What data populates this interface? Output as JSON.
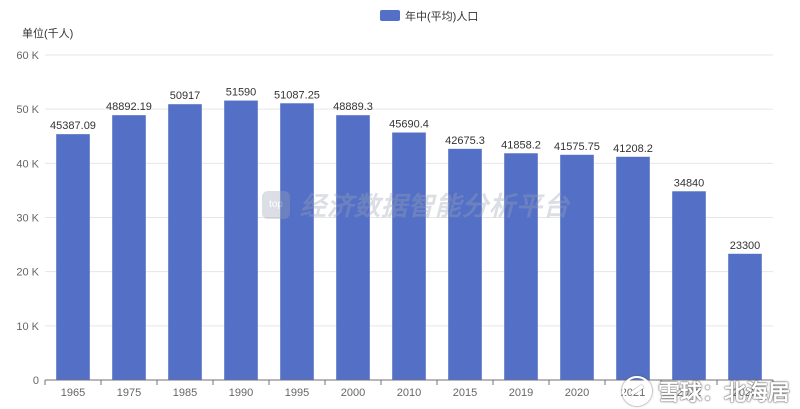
{
  "chart_data": {
    "type": "bar",
    "legend": "年中(平均)人口",
    "legend_position": "top-center",
    "unit_label": "单位(千人)",
    "categories": [
      "1965",
      "1975",
      "1985",
      "1990",
      "1995",
      "2000",
      "2010",
      "2015",
      "2019",
      "2020",
      "2021",
      "2022",
      "2023"
    ],
    "values": [
      45387.09,
      48892.19,
      50917,
      51590,
      51087.25,
      48889.3,
      45690.4,
      42675.3,
      41858.2,
      41575.75,
      41208.2,
      34840,
      23300
    ],
    "value_labels": [
      "45387.09",
      "48892.19",
      "50917",
      "51590",
      "51087.25",
      "48889.3",
      "45690.4",
      "42675.3",
      "41858.2",
      "41575.75",
      "41208.2",
      "34840",
      "23300"
    ],
    "ylim": [
      0,
      60000
    ],
    "yticks": [
      0,
      10000,
      20000,
      30000,
      40000,
      50000,
      60000
    ],
    "ytick_labels": [
      "0",
      "10 K",
      "20 K",
      "30 K",
      "40 K",
      "50 K",
      "60 K"
    ],
    "grid": true,
    "bar_color": "#5470c6"
  },
  "watermark": {
    "logo": "top",
    "text": "经济数据智能分析平台"
  },
  "brand": {
    "text": "雪球：北海居"
  }
}
